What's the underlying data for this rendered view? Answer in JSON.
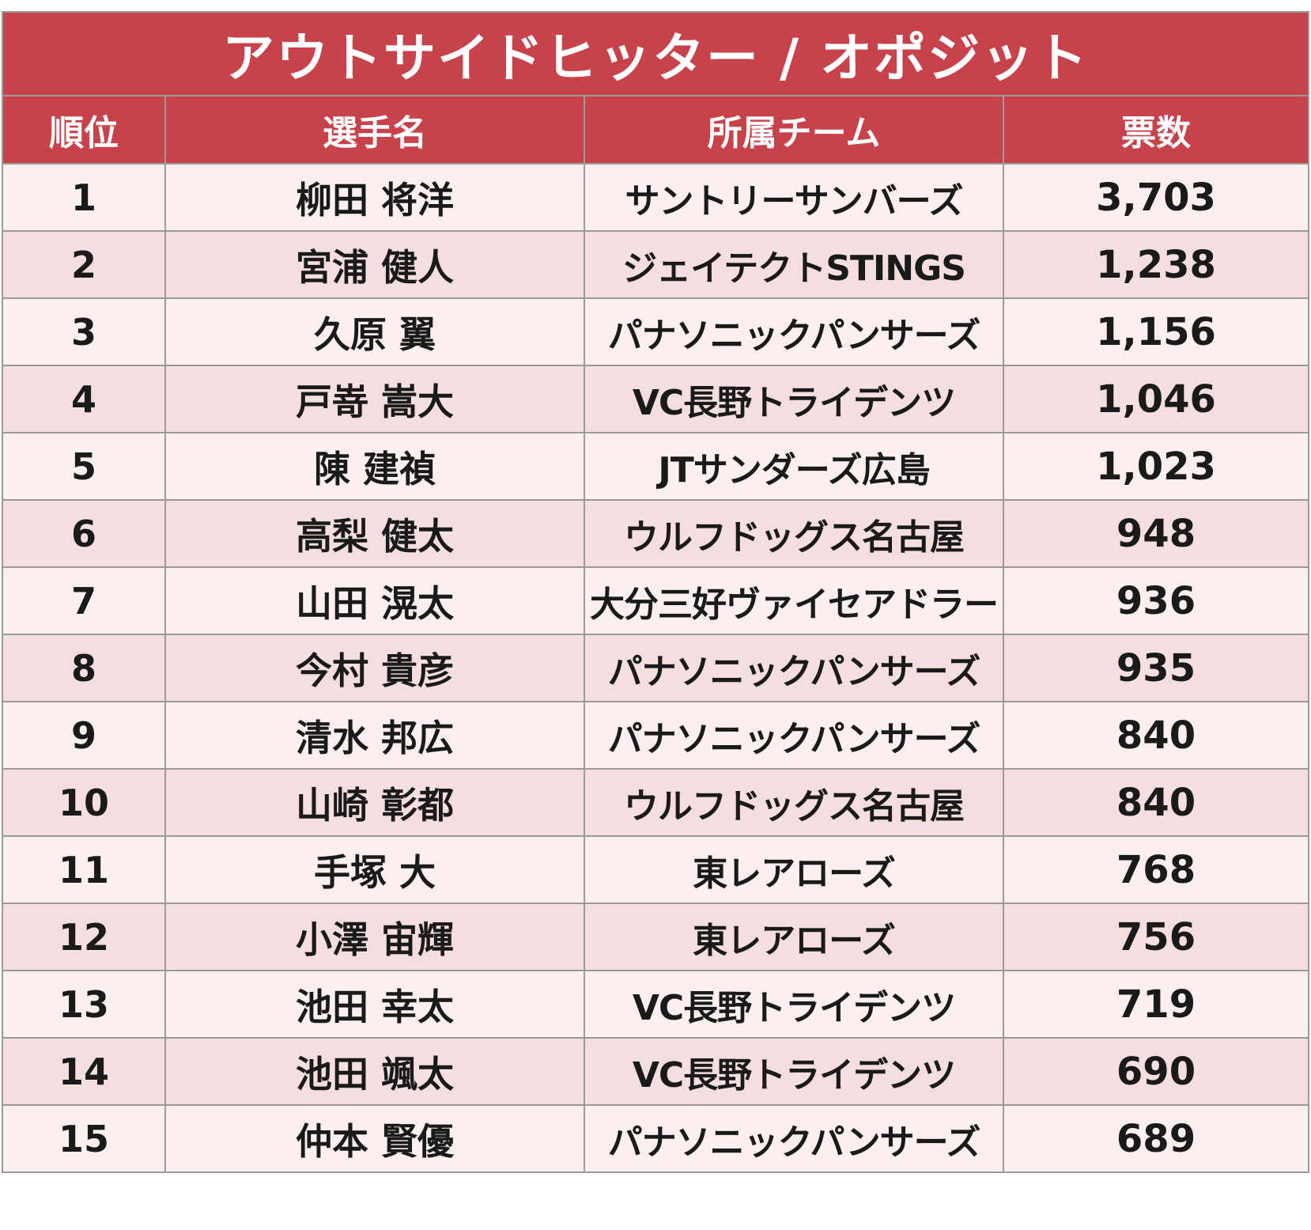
{
  "title": "アウトサイドヒッター / オポジット",
  "headers": {
    "rank": "順位",
    "player": "選手名",
    "team": "所属チーム",
    "votes": "票数"
  },
  "rows": [
    {
      "rank": "1",
      "player": "柳田 将洋",
      "team": "サントリーサンバーズ",
      "votes": "3,703"
    },
    {
      "rank": "2",
      "player": "宮浦 健人",
      "team": "ジェイテクトSTINGS",
      "votes": "1,238"
    },
    {
      "rank": "3",
      "player": "久原 翼",
      "team": "パナソニックパンサーズ",
      "votes": "1,156"
    },
    {
      "rank": "4",
      "player": "戸嵜 嵩大",
      "team": "VC長野トライデンツ",
      "votes": "1,046"
    },
    {
      "rank": "5",
      "player": "陳 建禎",
      "team": "JTサンダーズ広島",
      "votes": "1,023"
    },
    {
      "rank": "6",
      "player": "高梨 健太",
      "team": "ウルフドッグス名古屋",
      "votes": "948"
    },
    {
      "rank": "7",
      "player": "山田 滉太",
      "team": "大分三好ヴァイセアドラー",
      "votes": "936"
    },
    {
      "rank": "8",
      "player": "今村 貴彦",
      "team": "パナソニックパンサーズ",
      "votes": "935"
    },
    {
      "rank": "9",
      "player": "清水 邦広",
      "team": "パナソニックパンサーズ",
      "votes": "840"
    },
    {
      "rank": "10",
      "player": "山崎 彰都",
      "team": "ウルフドッグス名古屋",
      "votes": "840"
    },
    {
      "rank": "11",
      "player": "手塚 大",
      "team": "東レアローズ",
      "votes": "768"
    },
    {
      "rank": "12",
      "player": "小澤 宙輝",
      "team": "東レアローズ",
      "votes": "756"
    },
    {
      "rank": "13",
      "player": "池田 幸太",
      "team": "VC長野トライデンツ",
      "votes": "719"
    },
    {
      "rank": "14",
      "player": "池田 颯太",
      "team": "VC長野トライデンツ",
      "votes": "690"
    },
    {
      "rank": "15",
      "player": "仲本 賢優",
      "team": "パナソニックパンサーズ",
      "votes": "689"
    }
  ],
  "colors": {
    "header_bg": "#c7424a",
    "row_light": "#fbefef",
    "row_dark": "#f4dedf",
    "border": "#9a9a9a"
  }
}
